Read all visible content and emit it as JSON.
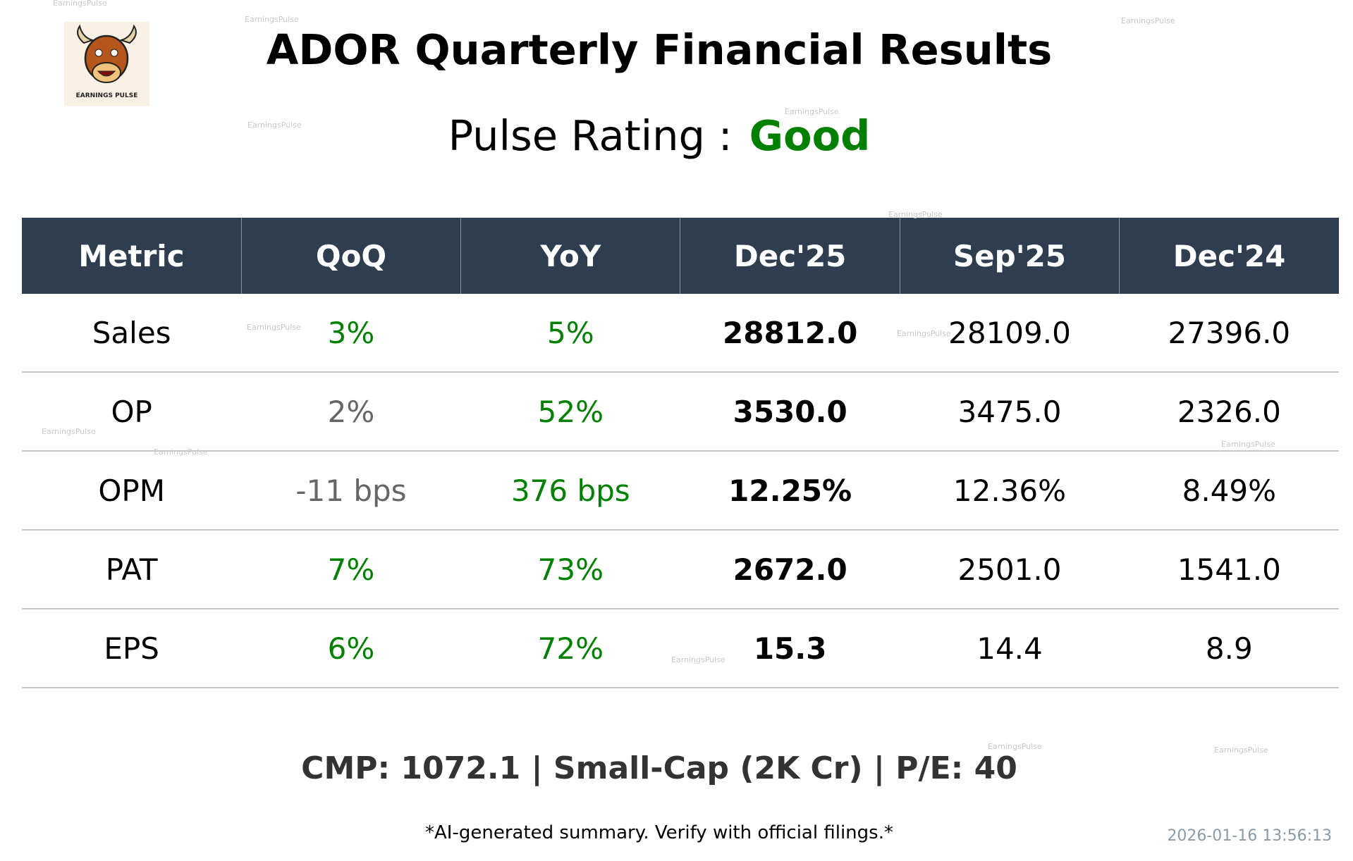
{
  "logo": {
    "text": "EARNINGS PULSE"
  },
  "header": {
    "title": "ADOR Quarterly Financial Results",
    "rating_label": "Pulse Rating :",
    "rating": "Good",
    "rating_color": "#008000"
  },
  "table": {
    "columns": [
      "Metric",
      "QoQ",
      "YoY",
      "Dec'25",
      "Sep'25",
      "Dec'24"
    ],
    "rows": [
      [
        "Sales",
        "3%",
        "5%",
        "28812.0",
        "28109.0",
        "27396.0"
      ],
      [
        "OP",
        "2%",
        "52%",
        "3530.0",
        "3475.0",
        "2326.0"
      ],
      [
        "OPM",
        "-11 bps",
        "376 bps",
        "12.25%",
        "12.36%",
        "8.49%"
      ],
      [
        "PAT",
        "7%",
        "73%",
        "2672.0",
        "2501.0",
        "1541.0"
      ],
      [
        "EPS",
        "6%",
        "72%",
        "15.3",
        "14.4",
        "8.9"
      ]
    ],
    "change_colors": [
      [
        "#008000",
        "#008000"
      ],
      [
        "#666666",
        "#008000"
      ],
      [
        "#666666",
        "#008000"
      ],
      [
        "#008000",
        "#008000"
      ],
      [
        "#008000",
        "#008000"
      ]
    ]
  },
  "footer": {
    "summary": "CMP: 1072.1 | Small-Cap (2K Cr) | P/E: 40",
    "disclaimer": "*AI-generated summary. Verify with official filings.*",
    "timestamp": "2026-01-16 13:56:13"
  },
  "watermarks": [
    "EarningsPulse",
    "EarningsPulse",
    "EarningsPulse",
    "EarningsPulse",
    "EarningsPulse",
    "EarningsPulse",
    "EarningsPulse",
    "EarningsPulse",
    "EarningsPulse",
    "EarningsPulse",
    "EarningsPulse",
    "EarningsPulse",
    "EarningsPulse",
    "EarningsPulse"
  ]
}
